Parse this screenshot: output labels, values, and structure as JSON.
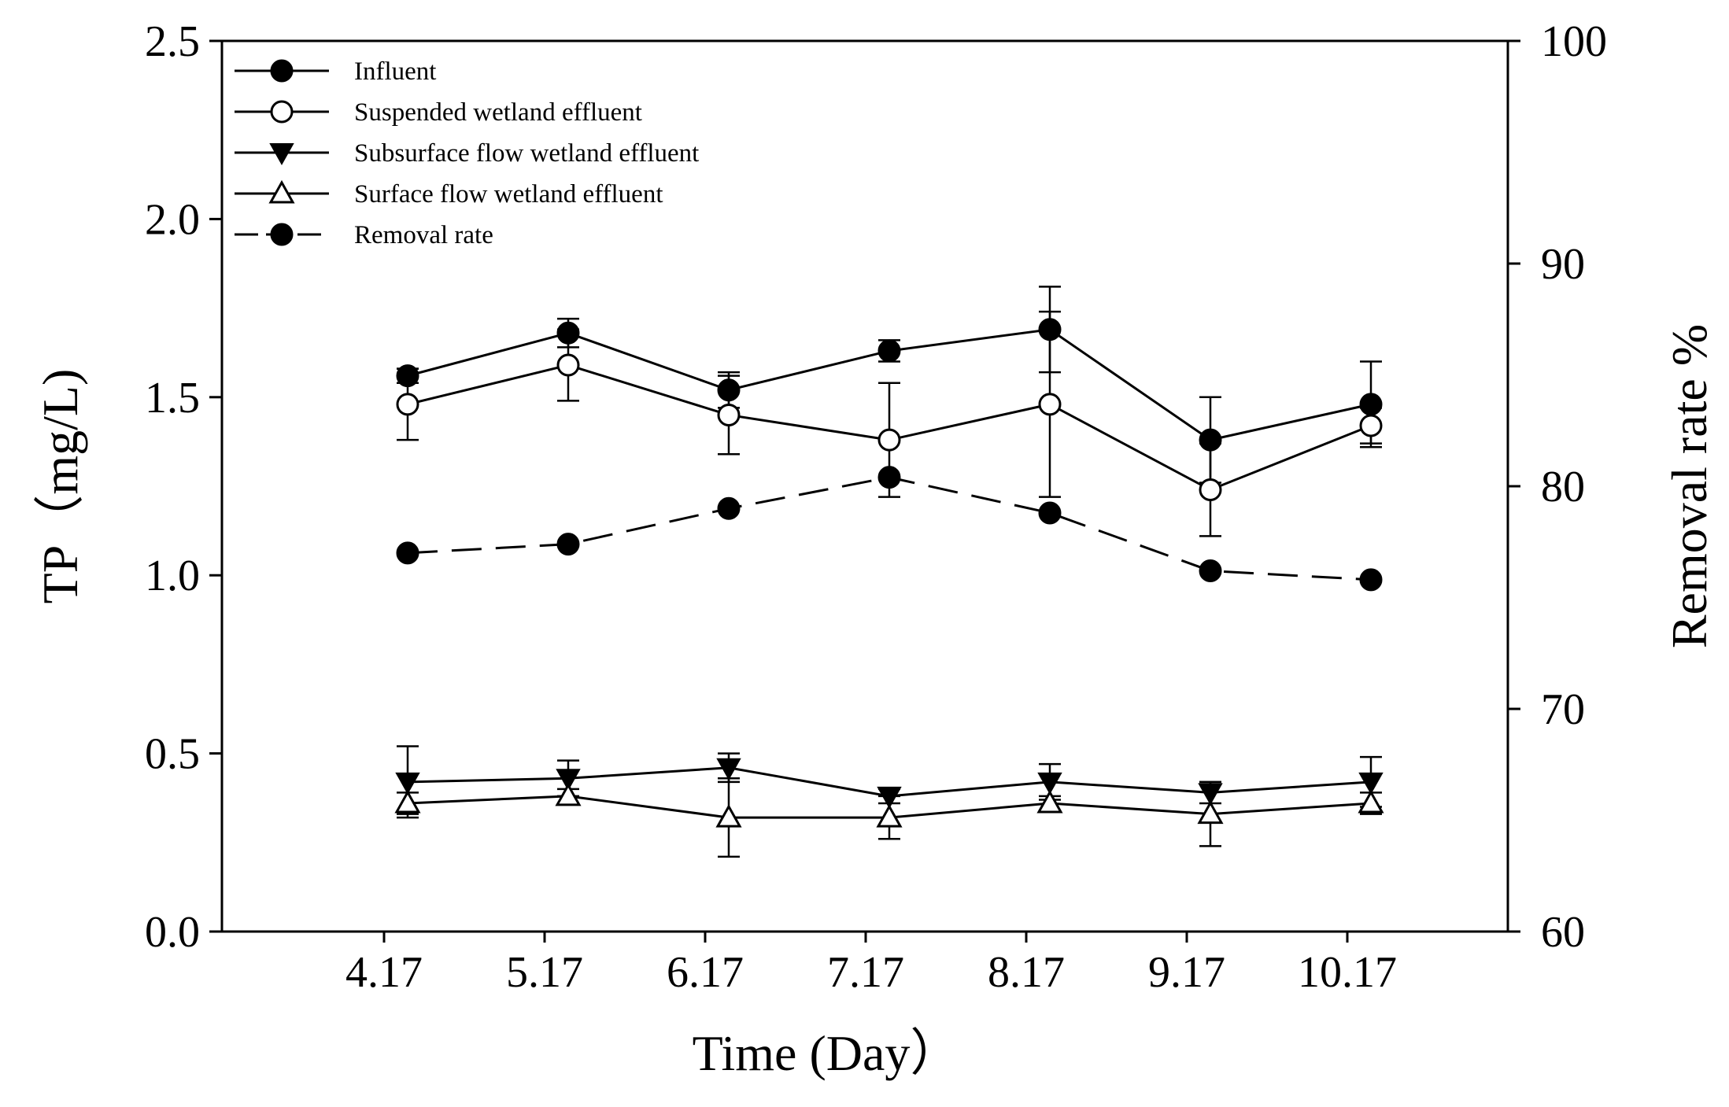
{
  "chart_data": {
    "type": "line",
    "title": "",
    "xlabel": "Time (Day）",
    "ylabel_left": "TP（mg/L)",
    "ylabel_right": "Removal rate %",
    "x_categories": [
      "4.17",
      "5.17",
      "6.17",
      "7.17",
      "8.17",
      "9.17",
      "10.17"
    ],
    "ylim_left": [
      0,
      2.5
    ],
    "ylim_right": [
      60,
      100
    ],
    "yticks_left": [
      "0.0",
      "0.5",
      "1.0",
      "1.5",
      "2.0",
      "2.5"
    ],
    "yticks_right": [
      "60",
      "70",
      "80",
      "90",
      "100"
    ],
    "legend_position": "top-left",
    "series": [
      {
        "name": "Influent",
        "axis": "left",
        "marker": "filled-circle",
        "dashed": false,
        "values": [
          1.56,
          1.68,
          1.52,
          1.63,
          1.69,
          1.38,
          1.48
        ],
        "errors": [
          0.02,
          0.04,
          0.05,
          0.03,
          0.12,
          0.12,
          0.12
        ]
      },
      {
        "name": "Suspended wetland  effluent",
        "axis": "left",
        "marker": "open-circle",
        "dashed": false,
        "values": [
          1.48,
          1.59,
          1.45,
          1.38,
          1.48,
          1.24,
          1.42
        ],
        "errors": [
          0.1,
          0.1,
          0.11,
          0.16,
          0.26,
          0.13,
          0.05
        ]
      },
      {
        "name": "Subsurface flow wetland effluent",
        "axis": "left",
        "marker": "filled-triangle-down",
        "dashed": false,
        "values": [
          0.42,
          0.43,
          0.46,
          0.38,
          0.42,
          0.39,
          0.42
        ],
        "errors": [
          0.1,
          0.05,
          0.04,
          0.02,
          0.05,
          0.03,
          0.07
        ]
      },
      {
        "name": "Surface flow wetland  effluent",
        "axis": "left",
        "marker": "open-triangle-up",
        "dashed": false,
        "values": [
          0.36,
          0.38,
          0.32,
          0.32,
          0.36,
          0.33,
          0.36
        ],
        "errors": [
          0.03,
          0.02,
          0.11,
          0.06,
          0.02,
          0.09,
          0.03
        ]
      },
      {
        "name": "Removal rate",
        "axis": "right",
        "marker": "filled-circle",
        "dashed": true,
        "values": [
          77.0,
          77.4,
          79.0,
          80.4,
          78.8,
          76.2,
          75.8
        ]
      }
    ]
  }
}
